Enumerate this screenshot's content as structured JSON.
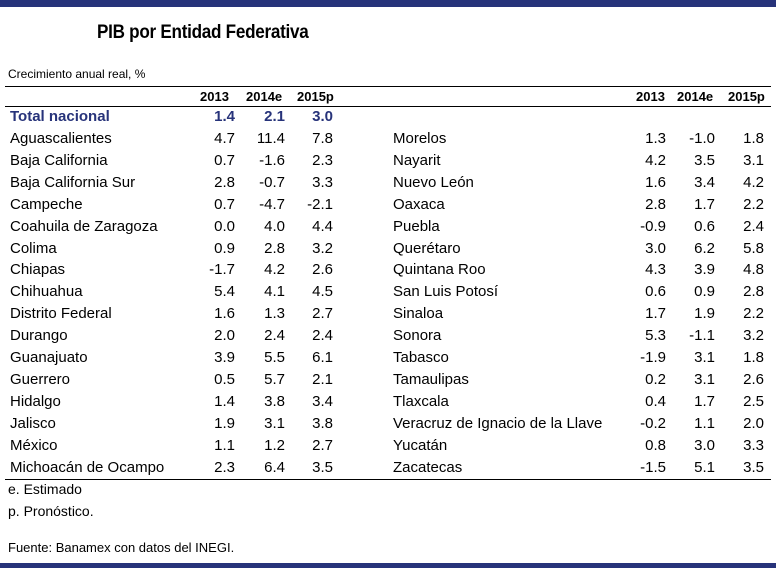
{
  "title": "PIB por Entidad Federativa",
  "subtitle": "Crecimiento anual real, %",
  "headers": [
    "2013",
    "2014e",
    "2015p"
  ],
  "total": {
    "name": "Total nacional",
    "v": [
      "1.4",
      "2.1",
      "3.0"
    ]
  },
  "left": [
    {
      "name": "Aguascalientes",
      "v": [
        "4.7",
        "11.4",
        "7.8"
      ]
    },
    {
      "name": "Baja California",
      "v": [
        "0.7",
        "-1.6",
        "2.3"
      ]
    },
    {
      "name": "Baja California Sur",
      "v": [
        "2.8",
        "-0.7",
        "3.3"
      ]
    },
    {
      "name": "Campeche",
      "v": [
        "0.7",
        "-4.7",
        "-2.1"
      ]
    },
    {
      "name": "Coahuila de Zaragoza",
      "v": [
        "0.0",
        "4.0",
        "4.4"
      ]
    },
    {
      "name": "Colima",
      "v": [
        "0.9",
        "2.8",
        "3.2"
      ]
    },
    {
      "name": "Chiapas",
      "v": [
        "-1.7",
        "4.2",
        "2.6"
      ]
    },
    {
      "name": "Chihuahua",
      "v": [
        "5.4",
        "4.1",
        "4.5"
      ]
    },
    {
      "name": "Distrito Federal",
      "v": [
        "1.6",
        "1.3",
        "2.7"
      ]
    },
    {
      "name": "Durango",
      "v": [
        "2.0",
        "2.4",
        "2.4"
      ]
    },
    {
      "name": "Guanajuato",
      "v": [
        "3.9",
        "5.5",
        "6.1"
      ]
    },
    {
      "name": "Guerrero",
      "v": [
        "0.5",
        "5.7",
        "2.1"
      ]
    },
    {
      "name": "Hidalgo",
      "v": [
        "1.4",
        "3.8",
        "3.4"
      ]
    },
    {
      "name": "Jalisco",
      "v": [
        "1.9",
        "3.1",
        "3.8"
      ]
    },
    {
      "name": "México",
      "v": [
        "1.1",
        "1.2",
        "2.7"
      ]
    },
    {
      "name": "Michoacán de Ocampo",
      "v": [
        "2.3",
        "6.4",
        "3.5"
      ]
    }
  ],
  "right": [
    {
      "name": "Morelos",
      "v": [
        "1.3",
        "-1.0",
        "1.8"
      ]
    },
    {
      "name": "Nayarit",
      "v": [
        "4.2",
        "3.5",
        "3.1"
      ]
    },
    {
      "name": "Nuevo León",
      "v": [
        "1.6",
        "3.4",
        "4.2"
      ]
    },
    {
      "name": "Oaxaca",
      "v": [
        "2.8",
        "1.7",
        "2.2"
      ]
    },
    {
      "name": "Puebla",
      "v": [
        "-0.9",
        "0.6",
        "2.4"
      ]
    },
    {
      "name": "Querétaro",
      "v": [
        "3.0",
        "6.2",
        "5.8"
      ]
    },
    {
      "name": "Quintana Roo",
      "v": [
        "4.3",
        "3.9",
        "4.8"
      ]
    },
    {
      "name": "San Luis Potosí",
      "v": [
        "0.6",
        "0.9",
        "2.8"
      ]
    },
    {
      "name": "Sinaloa",
      "v": [
        "1.7",
        "1.9",
        "2.2"
      ]
    },
    {
      "name": "Sonora",
      "v": [
        "5.3",
        "-1.1",
        "3.2"
      ]
    },
    {
      "name": "Tabasco",
      "v": [
        "-1.9",
        "3.1",
        "1.8"
      ]
    },
    {
      "name": "Tamaulipas",
      "v": [
        "0.2",
        "3.1",
        "2.6"
      ]
    },
    {
      "name": "Tlaxcala",
      "v": [
        "0.4",
        "1.7",
        "2.5"
      ]
    },
    {
      "name": "Veracruz de Ignacio de la Llave",
      "v": [
        "-0.2",
        "1.1",
        "2.0"
      ]
    },
    {
      "name": "Yucatán",
      "v": [
        "0.8",
        "3.0",
        "3.3"
      ]
    },
    {
      "name": "Zacatecas",
      "v": [
        "-1.5",
        "5.1",
        "3.5"
      ]
    }
  ],
  "notes": [
    "e. Estimado",
    "p. Pronóstico."
  ],
  "source": "Fuente: Banamex con datos del INEGI.",
  "colors": {
    "accent": "#27337a"
  }
}
